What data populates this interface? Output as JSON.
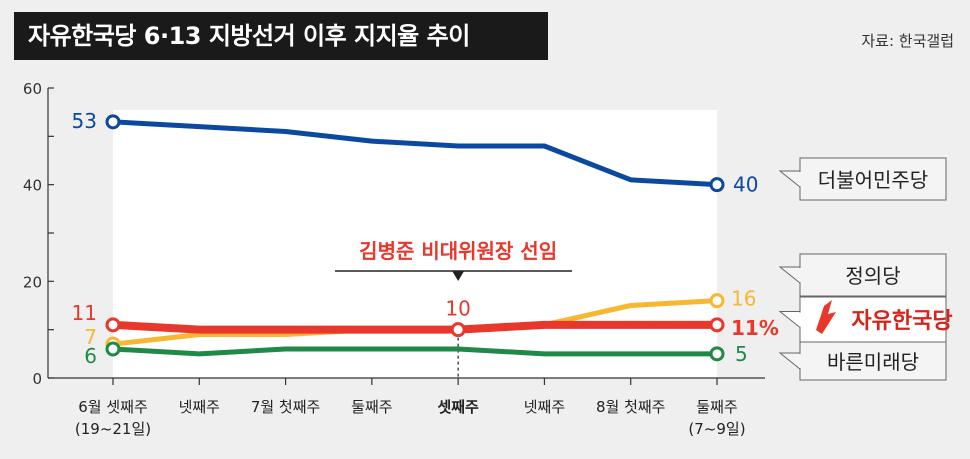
{
  "title": "자유한국당 6·13 지방선거 이후 지지율 추이",
  "source": "자료: 한국갤럽",
  "annotation": "김병준 비대위원장 선임",
  "chart_data": {
    "type": "line",
    "title": "자유한국당 6·13 지방선거 이후 지지율 추이",
    "ylim": [
      0,
      60
    ],
    "yticks": [
      "0",
      "20",
      "40",
      "60"
    ],
    "grid": false,
    "x": [
      "6월 셋째주\n(19~21일)",
      "넷째주",
      "7월 첫째주",
      "둘째주",
      "셋째주",
      "넷째주",
      "8월 첫째주",
      "둘째주\n(7~9일)"
    ],
    "highlight_x": "셋째주",
    "series": [
      {
        "name": "더불어민주당",
        "color": "#0b49a0",
        "values": [
          53,
          52,
          51,
          49,
          48,
          48,
          41,
          40
        ],
        "labels": {
          "start": "53",
          "end": "40"
        }
      },
      {
        "name": "정의당",
        "color": "#f7b731",
        "values": [
          7,
          9,
          9,
          10,
          10,
          11,
          15,
          16
        ],
        "labels": {
          "start": "7",
          "end": "16"
        }
      },
      {
        "name": "자유한국당",
        "color": "#e8372b",
        "values": [
          11,
          10,
          10,
          10,
          10,
          11,
          11,
          11
        ],
        "labels": {
          "start": "11",
          "mid": "10",
          "end": "11%"
        }
      },
      {
        "name": "바른미래당",
        "color": "#1f8a47",
        "values": [
          6,
          5,
          6,
          6,
          6,
          5,
          5,
          5
        ],
        "labels": {
          "start": "6",
          "end": "5"
        }
      }
    ]
  }
}
